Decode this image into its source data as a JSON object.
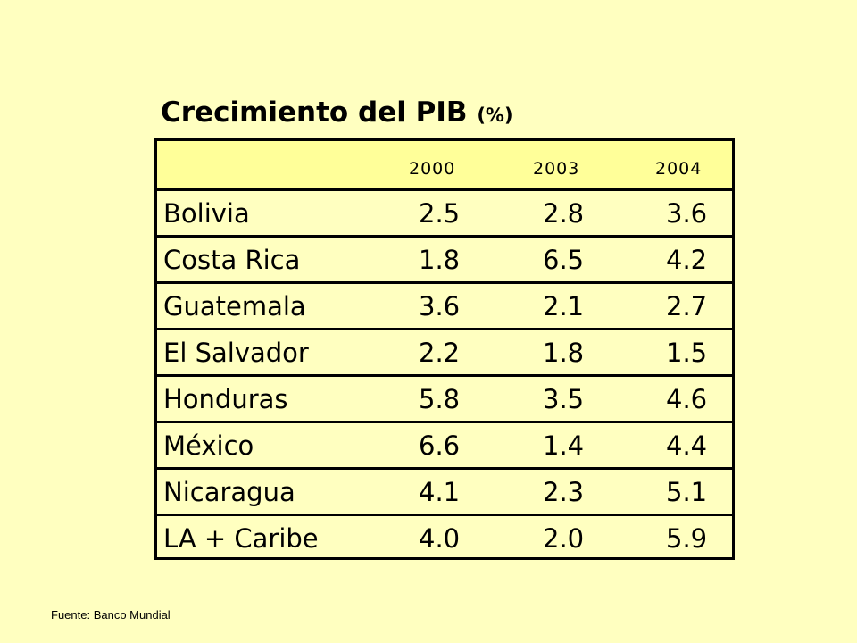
{
  "title": "Crecimiento del PIB",
  "title_unit": "(%)",
  "source": "Fuente: Banco Mundial",
  "colors": {
    "background": "#ffffc0",
    "header_fill": "#ffff99",
    "border": "#000000"
  },
  "chart_data": {
    "type": "table",
    "title": "Crecimiento del PIB (%)",
    "columns": [
      "2000",
      "2003",
      "2004"
    ],
    "rows": [
      {
        "label": "Bolivia",
        "values": [
          "2.5",
          "2.8",
          "3.6"
        ]
      },
      {
        "label": "Costa Rica",
        "values": [
          "1.8",
          "6.5",
          "4.2"
        ]
      },
      {
        "label": "Guatemala",
        "values": [
          "3.6",
          "2.1",
          "2.7"
        ]
      },
      {
        "label": "El Salvador",
        "values": [
          "2.2",
          "1.8",
          "1.5"
        ]
      },
      {
        "label": "Honduras",
        "values": [
          "5.8",
          "3.5",
          "4.6"
        ]
      },
      {
        "label": "México",
        "values": [
          "6.6",
          "1.4",
          "4.4"
        ]
      },
      {
        "label": "Nicaragua",
        "values": [
          "4.1",
          "2.3",
          "5.1"
        ]
      },
      {
        "label": "LA + Caribe",
        "values": [
          "4.0",
          "2.0",
          "5.9"
        ]
      }
    ]
  }
}
